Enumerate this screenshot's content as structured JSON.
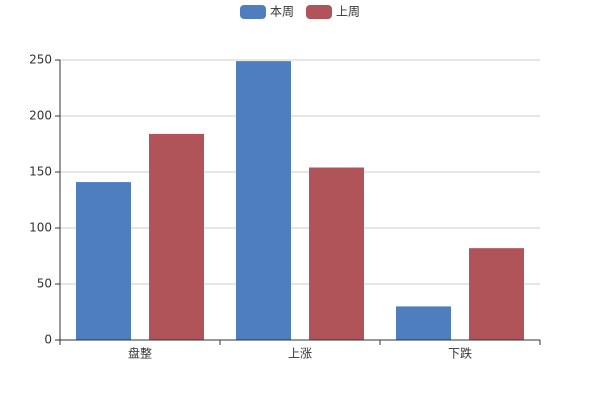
{
  "chart_data": {
    "type": "bar",
    "categories": [
      "盘整",
      "上涨",
      "下跌"
    ],
    "series": [
      {
        "name": "本周",
        "color": "#4e7ebe",
        "values": [
          141,
          249,
          30
        ]
      },
      {
        "name": "上周",
        "color": "#b05459",
        "values": [
          184,
          154,
          82
        ]
      }
    ],
    "ylim": [
      0,
      250
    ],
    "yticks": [
      0,
      50,
      100,
      150,
      200,
      250
    ],
    "grid": true,
    "legend": "top"
  }
}
